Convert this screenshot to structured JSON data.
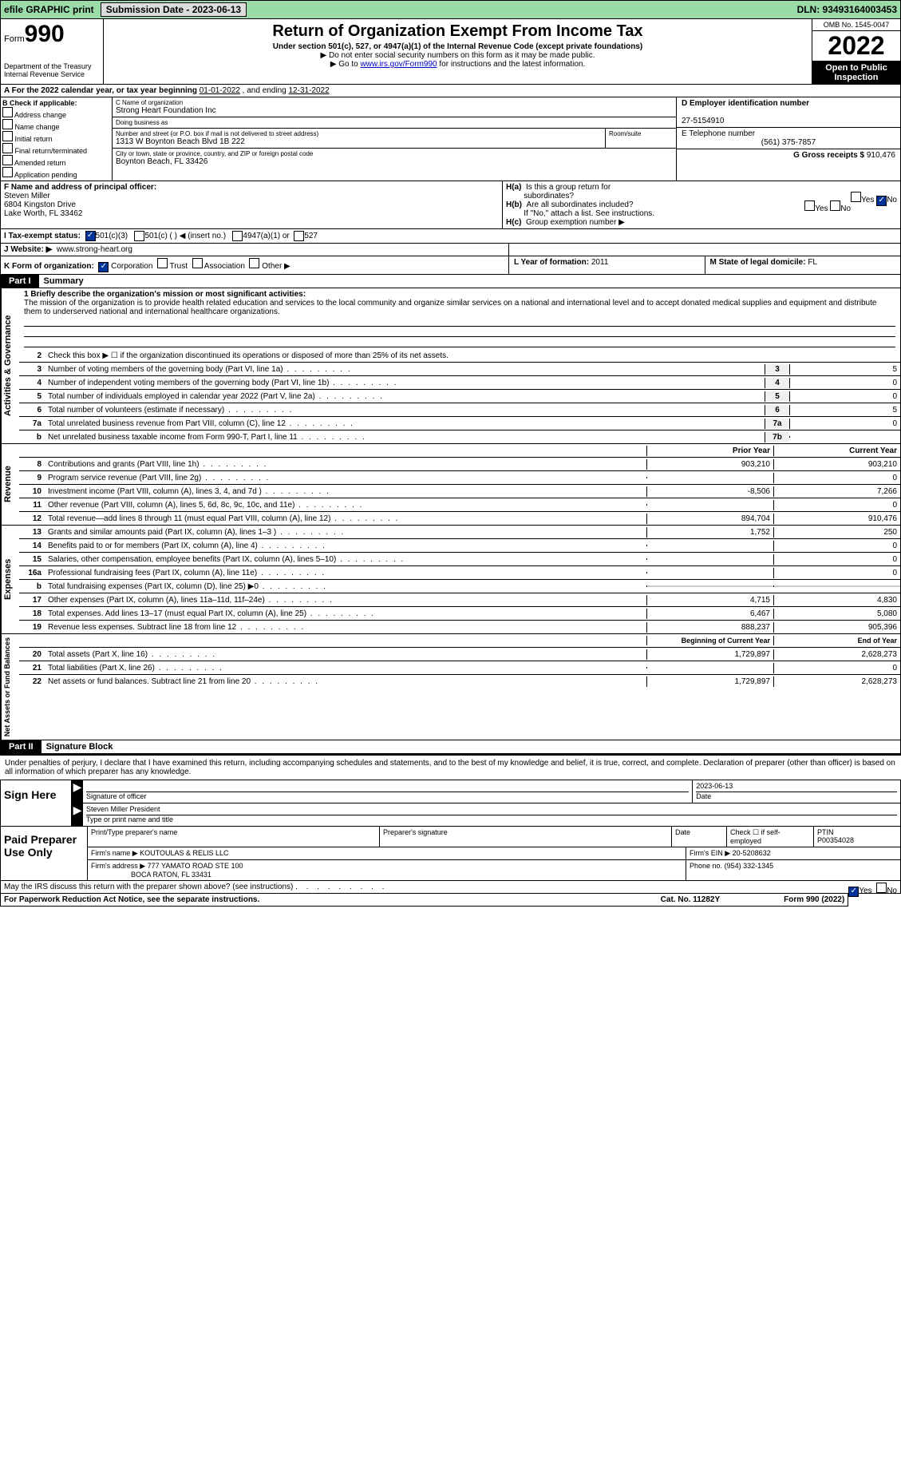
{
  "topbar": {
    "efile": "efile GRAPHIC print",
    "submission": "Submission Date - 2023-06-13",
    "dln": "DLN: 93493164003453"
  },
  "header": {
    "form": "Form",
    "formnum": "990",
    "title": "Return of Organization Exempt From Income Tax",
    "sub1": "Under section 501(c), 527, or 4947(a)(1) of the Internal Revenue Code (except private foundations)",
    "sub2": "▶ Do not enter social security numbers on this form as it may be made public.",
    "sub3_pre": "▶ Go to ",
    "sub3_link": "www.irs.gov/Form990",
    "sub3_post": " for instructions and the latest information.",
    "dept": "Department of the Treasury",
    "irs": "Internal Revenue Service",
    "omb": "OMB No. 1545-0047",
    "year": "2022",
    "open": "Open to Public Inspection"
  },
  "row_a": {
    "text_pre": "A For the 2022 calendar year, or tax year beginning ",
    "begin": "01-01-2022",
    "mid": "  , and ending ",
    "end": "12-31-2022"
  },
  "col_b": {
    "label": "B Check if applicable:",
    "items": [
      "Address change",
      "Name change",
      "Initial return",
      "Final return/terminated",
      "Amended return",
      "Application pending"
    ]
  },
  "col_c": {
    "name_label": "C Name of organization",
    "name": "Strong Heart Foundation Inc",
    "dba_label": "Doing business as",
    "dba": "",
    "street_label": "Number and street (or P.O. box if mail is not delivered to street address)",
    "room_label": "Room/suite",
    "street": "1313 W Boynton Beach Blvd 1B 222",
    "city_label": "City or town, state or province, country, and ZIP or foreign postal code",
    "city": "Boynton Beach, FL  33426"
  },
  "col_de": {
    "d_label": "D Employer identification number",
    "ein": "27-5154910",
    "e_label": "E Telephone number",
    "phone": "(561) 375-7857",
    "g_label": "G Gross receipts $",
    "gross": "910,476"
  },
  "row_f": {
    "label": "F  Name and address of principal officer:",
    "name": "Steven Miller",
    "addr1": "6804 Kingston Drive",
    "addr2": "Lake Worth, FL  33462"
  },
  "row_h": {
    "ha": "H(a)  Is this a group return for subordinates?",
    "hb": "H(b)  Are all subordinates included?",
    "hb_note": "If \"No,\" attach a list. See instructions.",
    "hc": "H(c)  Group exemption number ▶",
    "yes": "Yes",
    "no": "No"
  },
  "row_i": {
    "label": "I  Tax-exempt status:",
    "opt1": "501(c)(3)",
    "opt2": "501(c) (   ) ◀ (insert no.)",
    "opt3": "4947(a)(1) or",
    "opt4": "527"
  },
  "row_j": {
    "label": "J  Website: ▶",
    "url": "www.strong-heart.org"
  },
  "row_k": {
    "label": "K Form of organization:",
    "opts": [
      "Corporation",
      "Trust",
      "Association",
      "Other ▶"
    ]
  },
  "row_l": {
    "l_label": "L Year of formation:",
    "l_val": "2011",
    "m_label": "M State of legal domicile:",
    "m_val": "FL"
  },
  "part1": {
    "label": "Part I",
    "title": "Summary",
    "mission_label": "1  Briefly describe the organization's mission or most significant activities:",
    "mission": "The mission of the organization is to provide health related education and services to the local community and organize similar services on a national and international level and to accept donated medical supplies and equipment and distribute them to underserved national and international healthcare organizations.",
    "line2": "Check this box ▶ ☐  if the organization discontinued its operations or disposed of more than 25% of its net assets.",
    "lines_gov": [
      {
        "n": "3",
        "d": "Number of voting members of the governing body (Part VI, line 1a)",
        "box": "3",
        "v": "5"
      },
      {
        "n": "4",
        "d": "Number of independent voting members of the governing body (Part VI, line 1b)",
        "box": "4",
        "v": "0"
      },
      {
        "n": "5",
        "d": "Total number of individuals employed in calendar year 2022 (Part V, line 2a)",
        "box": "5",
        "v": "0"
      },
      {
        "n": "6",
        "d": "Total number of volunteers (estimate if necessary)",
        "box": "6",
        "v": "5"
      },
      {
        "n": "7a",
        "d": "Total unrelated business revenue from Part VIII, column (C), line 12",
        "box": "7a",
        "v": "0"
      },
      {
        "n": "b",
        "d": "Net unrelated business taxable income from Form 990-T, Part I, line 11",
        "box": "7b",
        "v": ""
      }
    ],
    "prior": "Prior Year",
    "current": "Current Year",
    "lines_rev": [
      {
        "n": "8",
        "d": "Contributions and grants (Part VIII, line 1h)",
        "p": "903,210",
        "c": "903,210"
      },
      {
        "n": "9",
        "d": "Program service revenue (Part VIII, line 2g)",
        "p": "",
        "c": "0"
      },
      {
        "n": "10",
        "d": "Investment income (Part VIII, column (A), lines 3, 4, and 7d )",
        "p": "-8,506",
        "c": "7,266"
      },
      {
        "n": "11",
        "d": "Other revenue (Part VIII, column (A), lines 5, 6d, 8c, 9c, 10c, and 11e)",
        "p": "",
        "c": "0"
      },
      {
        "n": "12",
        "d": "Total revenue—add lines 8 through 11 (must equal Part VIII, column (A), line 12)",
        "p": "894,704",
        "c": "910,476"
      }
    ],
    "lines_exp": [
      {
        "n": "13",
        "d": "Grants and similar amounts paid (Part IX, column (A), lines 1–3 )",
        "p": "1,752",
        "c": "250"
      },
      {
        "n": "14",
        "d": "Benefits paid to or for members (Part IX, column (A), line 4)",
        "p": "",
        "c": "0"
      },
      {
        "n": "15",
        "d": "Salaries, other compensation, employee benefits (Part IX, column (A), lines 5–10)",
        "p": "",
        "c": "0"
      },
      {
        "n": "16a",
        "d": "Professional fundraising fees (Part IX, column (A), line 11e)",
        "p": "",
        "c": "0"
      },
      {
        "n": "b",
        "d": "Total fundraising expenses (Part IX, column (D), line 25) ▶0",
        "p": "",
        "c": "",
        "shade": true
      },
      {
        "n": "17",
        "d": "Other expenses (Part IX, column (A), lines 11a–11d, 11f–24e)",
        "p": "4,715",
        "c": "4,830"
      },
      {
        "n": "18",
        "d": "Total expenses. Add lines 13–17 (must equal Part IX, column (A), line 25)",
        "p": "6,467",
        "c": "5,080"
      },
      {
        "n": "19",
        "d": "Revenue less expenses. Subtract line 18 from line 12",
        "p": "888,237",
        "c": "905,396"
      }
    ],
    "begin": "Beginning of Current Year",
    "end": "End of Year",
    "lines_net": [
      {
        "n": "20",
        "d": "Total assets (Part X, line 16)",
        "p": "1,729,897",
        "c": "2,628,273"
      },
      {
        "n": "21",
        "d": "Total liabilities (Part X, line 26)",
        "p": "",
        "c": "0"
      },
      {
        "n": "22",
        "d": "Net assets or fund balances. Subtract line 21 from line 20",
        "p": "1,729,897",
        "c": "2,628,273"
      }
    ]
  },
  "part2": {
    "label": "Part II",
    "title": "Signature Block",
    "decl": "Under penalties of perjury, I declare that I have examined this return, including accompanying schedules and statements, and to the best of my knowledge and belief, it is true, correct, and complete. Declaration of preparer (other than officer) is based on all information of which preparer has any knowledge."
  },
  "sign": {
    "label": "Sign Here",
    "sig_label": "Signature of officer",
    "date": "2023-06-13",
    "date_label": "Date",
    "name": "Steven Miller  President",
    "name_label": "Type or print name and title"
  },
  "prep": {
    "label": "Paid Preparer Use Only",
    "h1": "Print/Type preparer's name",
    "h2": "Preparer's signature",
    "h3": "Date",
    "h4": "Check ☐ if self-employed",
    "h5": "PTIN",
    "ptin": "P00354028",
    "firm_label": "Firm's name    ▶",
    "firm": "KOUTOULAS & RELIS LLC",
    "ein_label": "Firm's EIN ▶",
    "ein": "20-5208632",
    "addr_label": "Firm's address ▶",
    "addr1": "777 YAMATO ROAD STE 100",
    "addr2": "BOCA RATON, FL  33431",
    "phone_label": "Phone no.",
    "phone": "(954) 332-1345"
  },
  "discuss": "May the IRS discuss this return with the preparer shown above? (see instructions)",
  "footer": {
    "left": "For Paperwork Reduction Act Notice, see the separate instructions.",
    "mid": "Cat. No. 11282Y",
    "right": "Form 990 (2022)"
  },
  "vert": {
    "gov": "Activities & Governance",
    "rev": "Revenue",
    "exp": "Expenses",
    "net": "Net Assets or Fund Balances"
  }
}
